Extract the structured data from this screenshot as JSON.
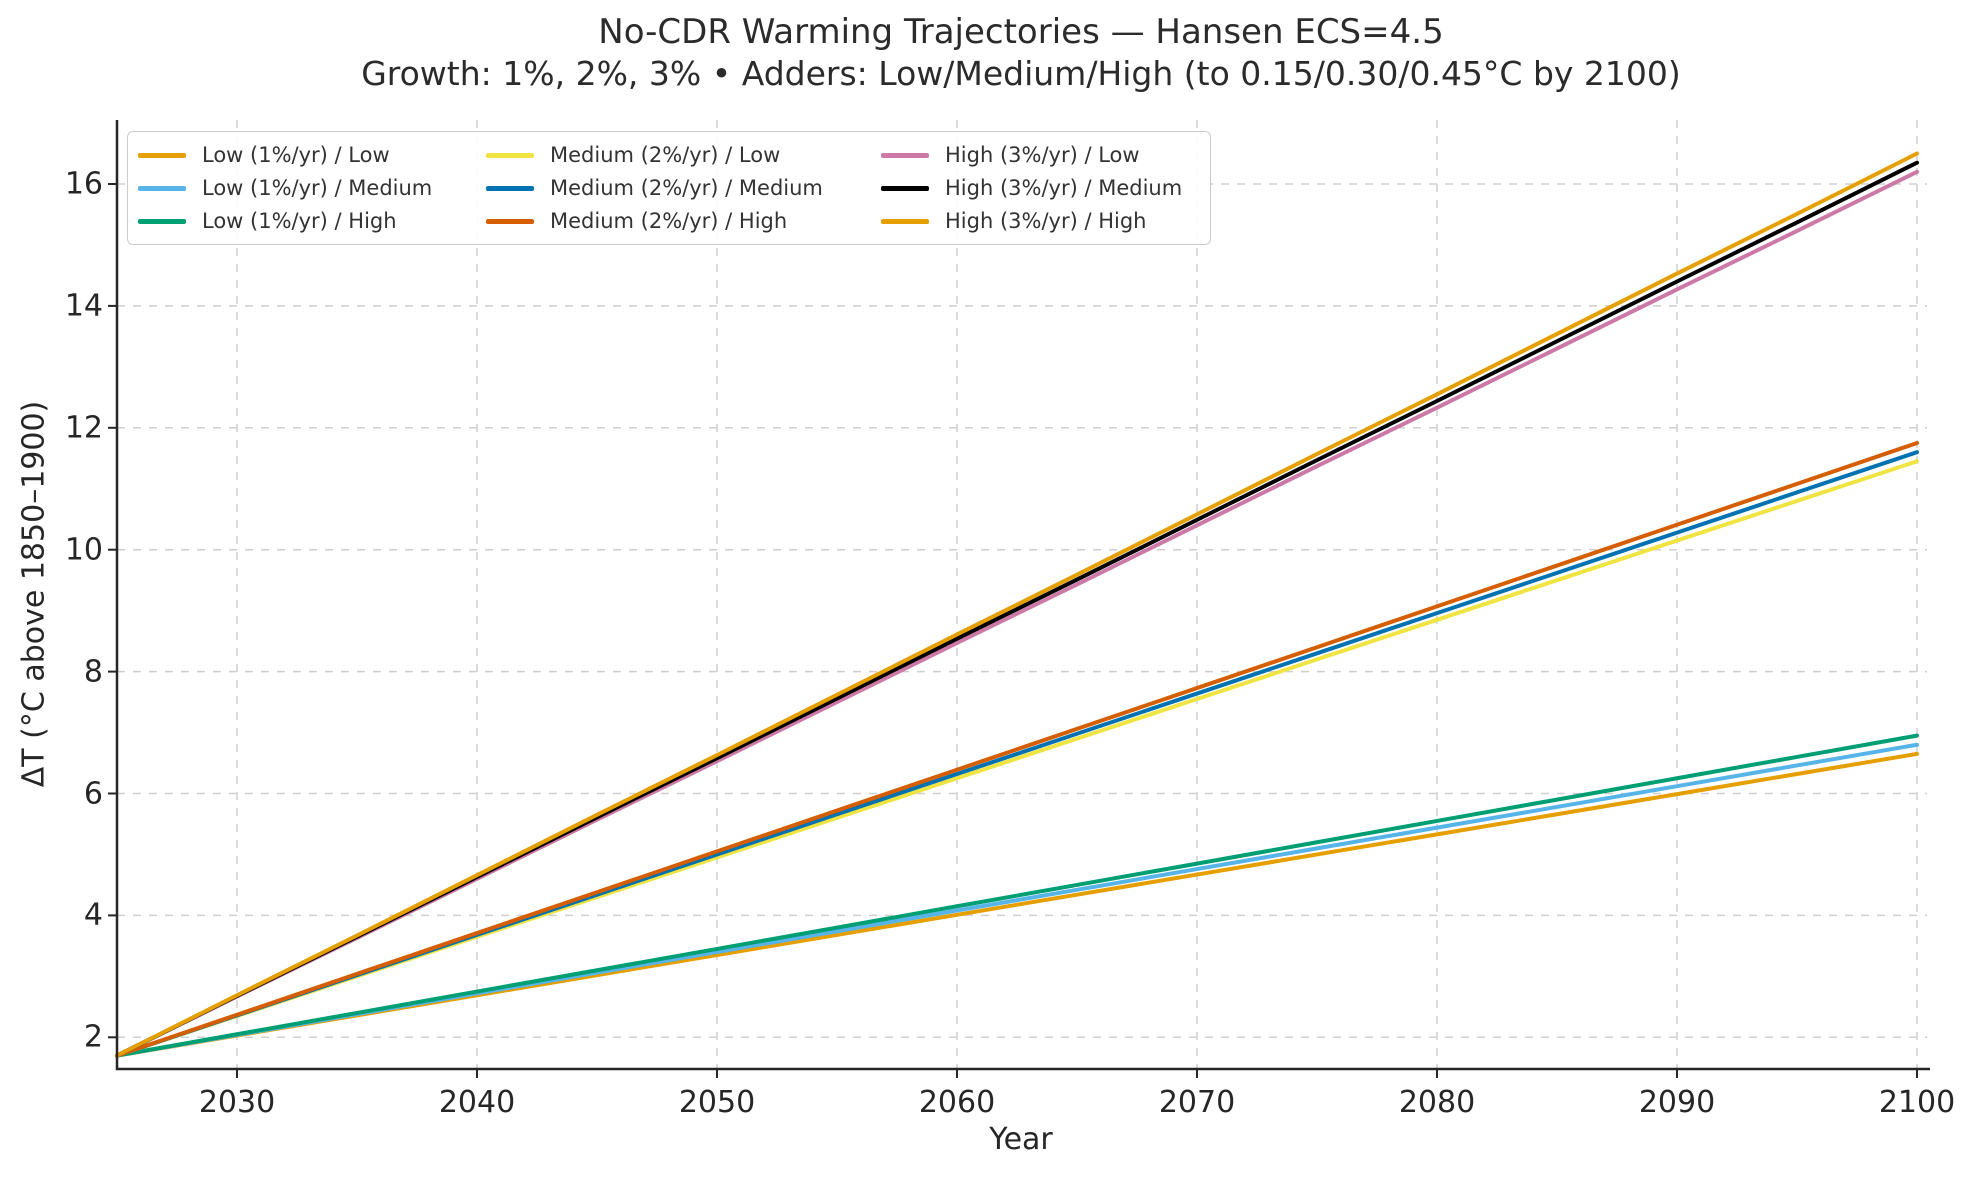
{
  "chart_data": {
    "type": "line",
    "title": "No-CDR Warming Trajectories — Hansen ECS=4.5",
    "subtitle": "Growth: 1%, 2%, 3% • Adders: Low/Medium/High (to 0.15/0.30/0.45°C by 2100)",
    "xlabel": "Year",
    "ylabel": "ΔT (°C above 1850–1900)",
    "x": [
      2025,
      2030,
      2035,
      2040,
      2045,
      2050,
      2055,
      2060,
      2065,
      2070,
      2075,
      2080,
      2085,
      2090,
      2095,
      2100
    ],
    "x_ticks": [
      2030,
      2040,
      2050,
      2060,
      2070,
      2080,
      2090,
      2100
    ],
    "y_ticks": [
      2,
      4,
      6,
      8,
      10,
      12,
      14,
      16
    ],
    "xlim": [
      2025,
      2100
    ],
    "ylim": [
      1.48,
      17.05
    ],
    "grid": true,
    "legend_position": "upper-left",
    "legend_columns": 3,
    "series": [
      {
        "name": "Low (1%/yr) / Low",
        "color": "#e69f00",
        "values": [
          1.7,
          2.03,
          2.36,
          2.69,
          3.02,
          3.35,
          3.68,
          4.01,
          4.34,
          4.67,
          5.0,
          5.33,
          5.66,
          5.99,
          6.32,
          6.65
        ]
      },
      {
        "name": "Low (1%/yr) / Medium",
        "color": "#56b4e9",
        "values": [
          1.7,
          2.04,
          2.38,
          2.72,
          3.06,
          3.4,
          3.74,
          4.08,
          4.42,
          4.76,
          5.1,
          5.44,
          5.78,
          6.12,
          6.46,
          6.8
        ]
      },
      {
        "name": "Low (1%/yr) / High",
        "color": "#009e73",
        "values": [
          1.7,
          2.05,
          2.4,
          2.75,
          3.1,
          3.45,
          3.8,
          4.15,
          4.5,
          4.85,
          5.2,
          5.55,
          5.9,
          6.25,
          6.6,
          6.95
        ]
      },
      {
        "name": "Medium (2%/yr) / Low",
        "color": "#f0e442",
        "values": [
          1.7,
          2.35,
          3.0,
          3.65,
          4.3,
          4.95,
          5.6,
          6.25,
          6.9,
          7.55,
          8.2,
          8.85,
          9.5,
          10.15,
          10.8,
          11.45
        ]
      },
      {
        "name": "Medium (2%/yr) / Medium",
        "color": "#0072b2",
        "values": [
          1.7,
          2.36,
          3.02,
          3.68,
          4.34,
          5.0,
          5.66,
          6.32,
          6.98,
          7.64,
          8.3,
          8.96,
          9.62,
          10.28,
          10.94,
          11.6
        ]
      },
      {
        "name": "Medium (2%/yr) / High",
        "color": "#d55e00",
        "values": [
          1.7,
          2.37,
          3.04,
          3.71,
          4.38,
          5.05,
          5.72,
          6.39,
          7.06,
          7.73,
          8.4,
          9.07,
          9.74,
          10.41,
          11.08,
          11.75
        ]
      },
      {
        "name": "High (3%/yr) / Low",
        "color": "#cc79a7",
        "values": [
          1.7,
          2.67,
          3.63,
          4.6,
          5.57,
          6.53,
          7.5,
          8.47,
          9.43,
          10.4,
          11.37,
          12.33,
          13.3,
          14.27,
          15.23,
          16.2
        ]
      },
      {
        "name": "High (3%/yr) / Medium",
        "color": "#000000",
        "values": [
          1.7,
          2.68,
          3.65,
          4.63,
          5.61,
          6.58,
          7.56,
          8.54,
          9.51,
          10.49,
          11.47,
          12.44,
          13.42,
          14.4,
          15.37,
          16.35
        ]
      },
      {
        "name": "High (3%/yr) / High",
        "color": "#e69f00",
        "values": [
          1.7,
          2.69,
          3.67,
          4.66,
          5.65,
          6.63,
          7.62,
          8.61,
          9.59,
          10.58,
          11.57,
          12.55,
          13.54,
          14.53,
          15.51,
          16.5
        ]
      }
    ]
  }
}
